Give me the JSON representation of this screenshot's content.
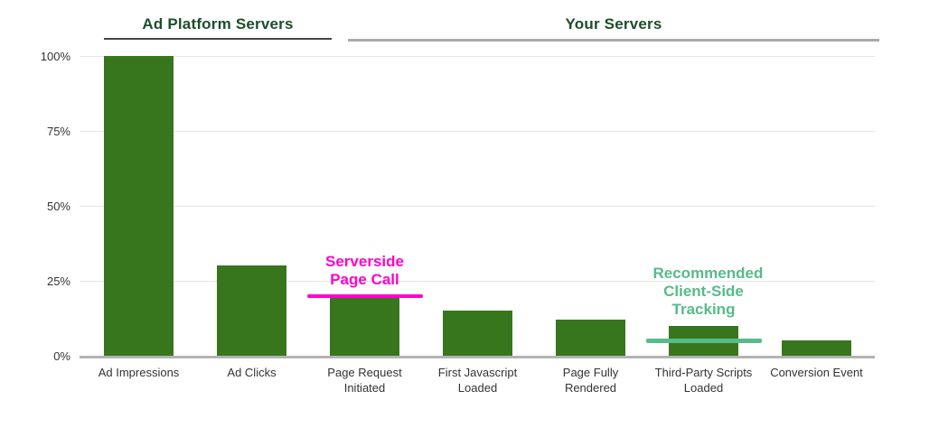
{
  "section_headers": {
    "left": "Ad Platform Servers",
    "right": "Your Servers"
  },
  "chart_data": {
    "type": "bar",
    "title": "",
    "xlabel": "",
    "ylabel": "",
    "categories": [
      "Ad Impressions",
      "Ad Clicks",
      "Page Request Initiated",
      "First Javascript Loaded",
      "Page Fully Rendered",
      "Third-Party Scripts Loaded",
      "Conversion Event"
    ],
    "values": [
      100,
      30,
      20,
      15,
      12,
      10,
      5
    ],
    "value_unit": "%",
    "ylim": [
      0,
      100
    ],
    "ytick_labels": [
      "0%",
      "25%",
      "50%",
      "75%",
      "100%"
    ],
    "ytick_values": [
      0,
      25,
      50,
      75,
      100
    ],
    "grid": true,
    "legend": "none",
    "bar_color": "#38761d",
    "section_spans": [
      {
        "label": "Ad Platform Servers",
        "first_category": "Ad Impressions",
        "last_category": "Ad Clicks"
      },
      {
        "label": "Your Servers",
        "first_category": "Page Request Initiated",
        "last_category": "Conversion Event"
      }
    ],
    "annotations": [
      {
        "text": "Serverside Page Call",
        "color": "#ff00cc",
        "category": "Page Request Initiated",
        "line_value": 20
      },
      {
        "text": "Recommended Client-Side Tracking",
        "color": "#57bb8a",
        "category": "Third-Party Scripts Loaded",
        "line_value": 5
      }
    ]
  },
  "colors": {
    "bar": "#38761d",
    "header_text": "#1e4d2b",
    "axis_text": "#333333",
    "gridline": "#e6e6e6",
    "axis_line": "#b3b3b3",
    "left_rule": "#444444",
    "right_rule": "#aaaaaa",
    "serverside_annotation": "#ff00cc",
    "clientside_annotation": "#57bb8a"
  }
}
